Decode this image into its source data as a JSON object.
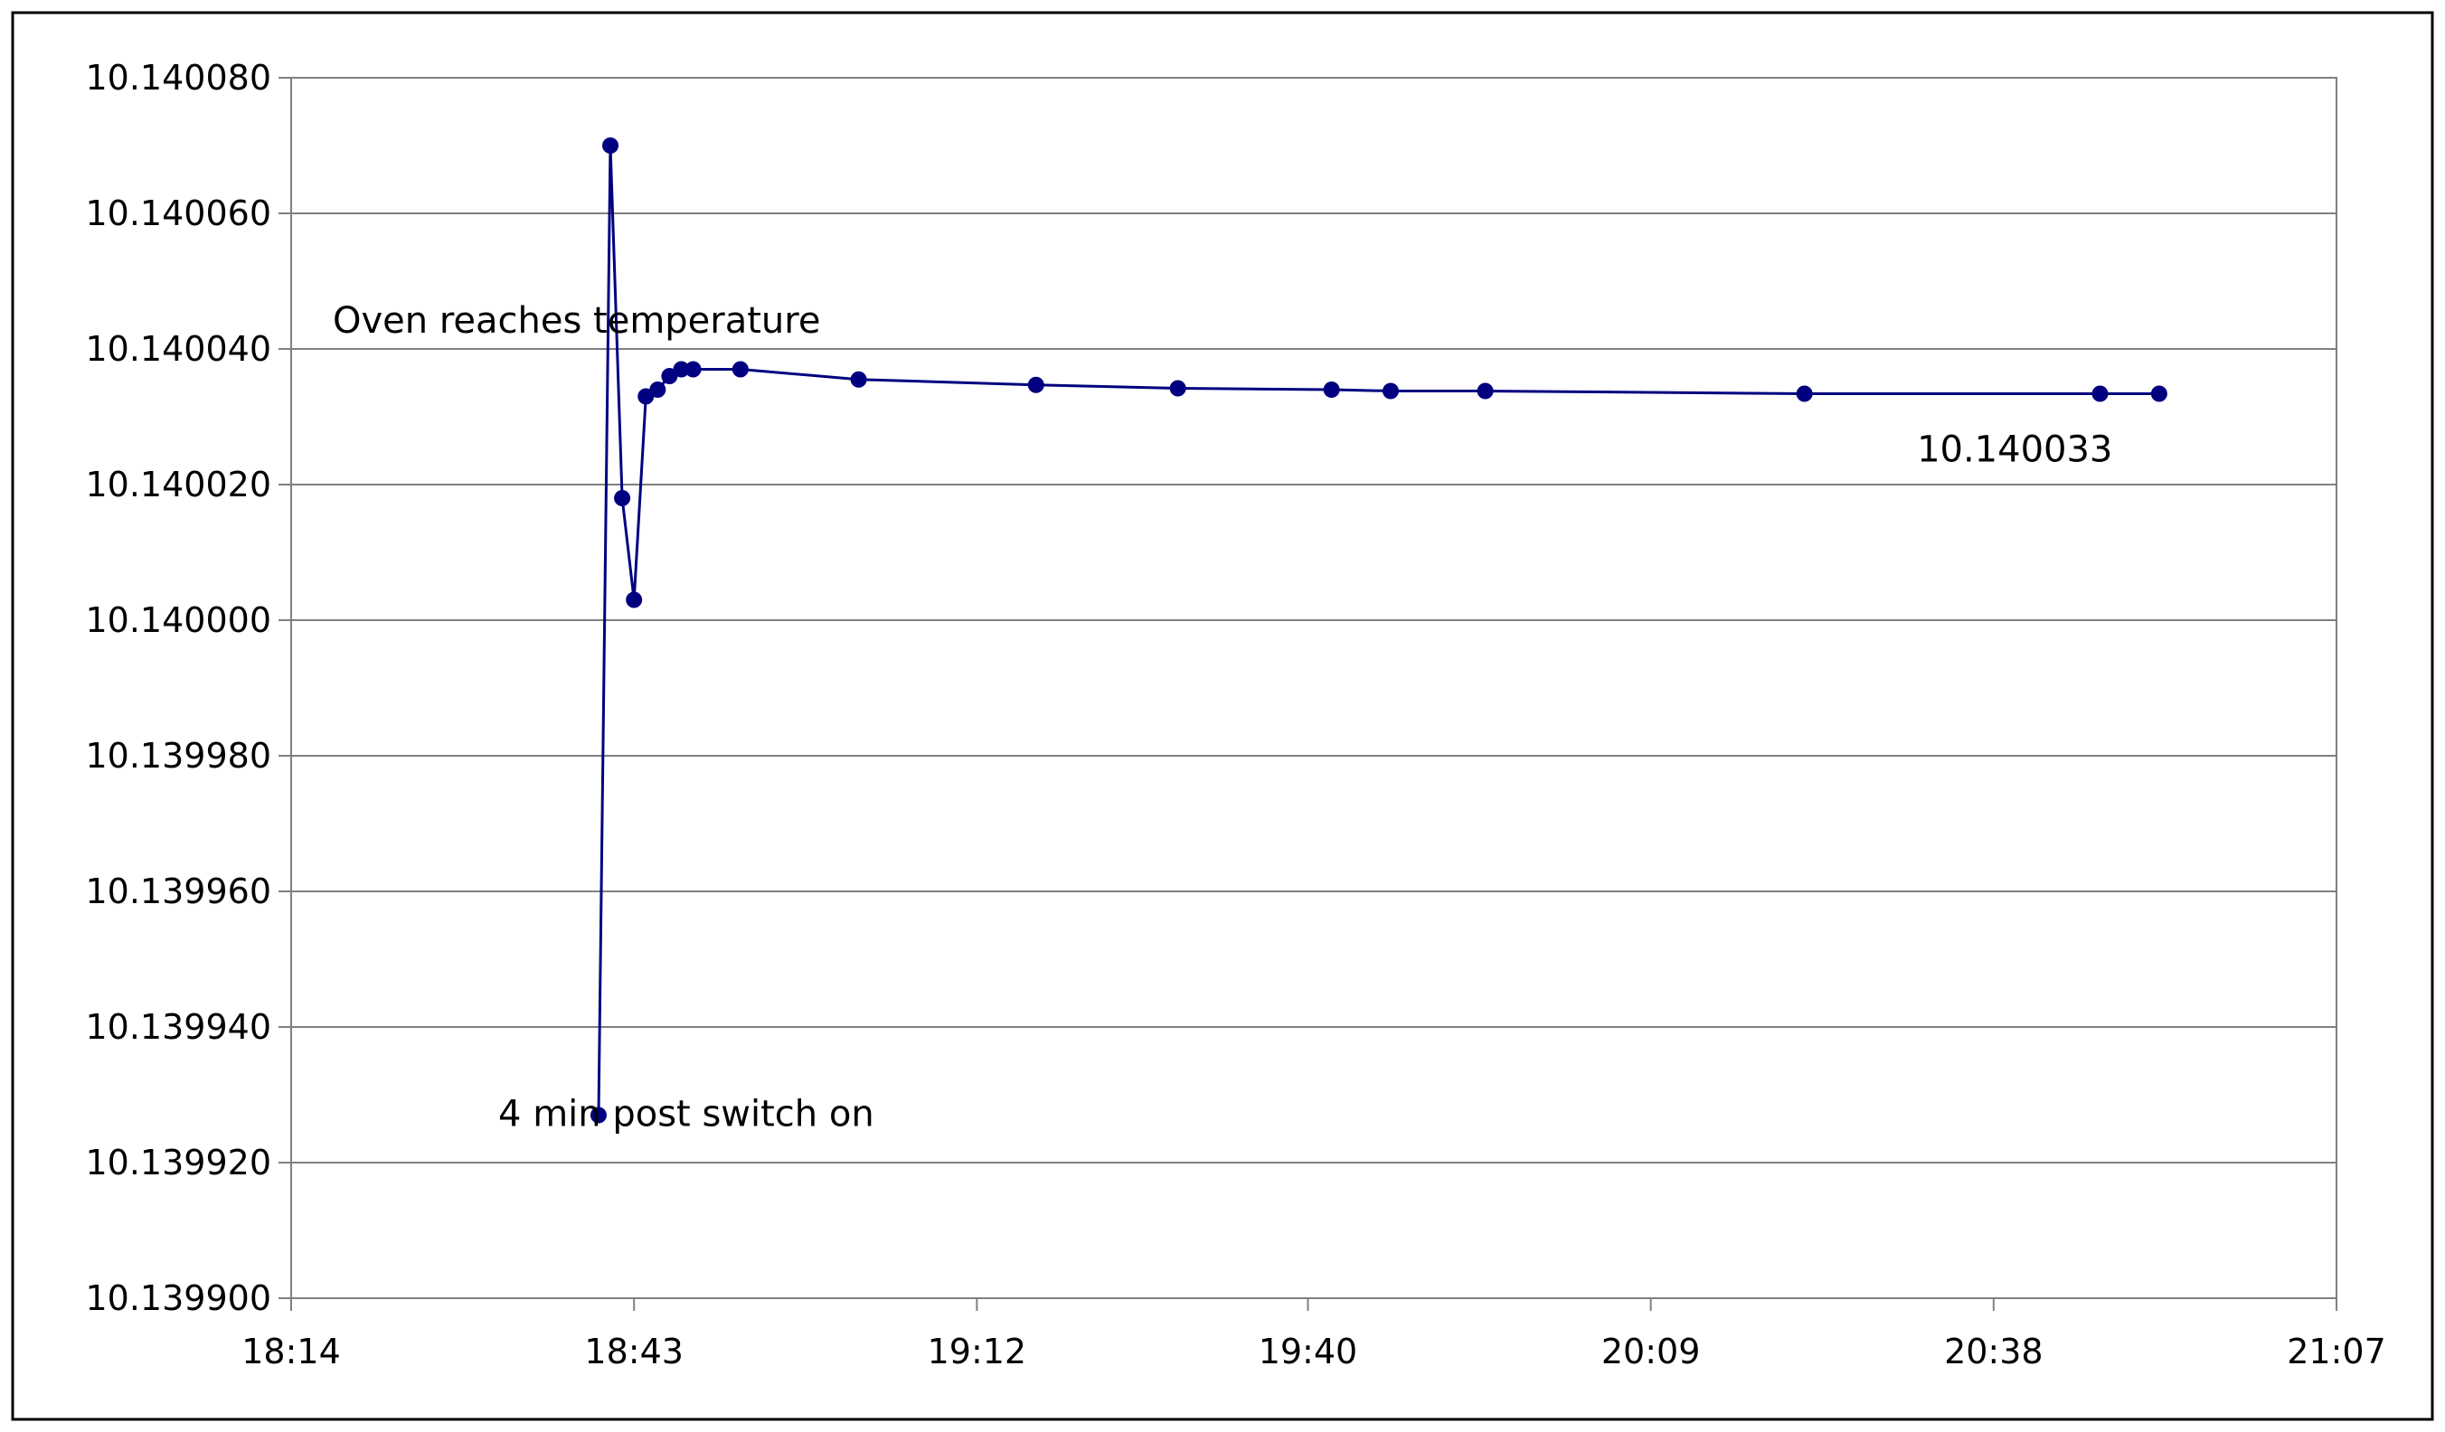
{
  "chart_data": {
    "type": "line",
    "title": "",
    "xlabel": "",
    "ylabel": "",
    "x_ticks": [
      "18:14",
      "18:43",
      "19:12",
      "19:40",
      "20:09",
      "20:38",
      "21:07"
    ],
    "y_ticks": [
      "10.139900",
      "10.139920",
      "10.139940",
      "10.139960",
      "10.139980",
      "10.140000",
      "10.140020",
      "10.140040",
      "10.140060",
      "10.140080"
    ],
    "xlim": [
      "18:14",
      "21:07"
    ],
    "ylim": [
      10.1399,
      10.14008
    ],
    "grid": "horizontal",
    "series": [
      {
        "color": "#000080",
        "x": [
          "18:40",
          "18:41",
          "18:42",
          "18:43",
          "18:44",
          "18:45",
          "18:46",
          "18:47",
          "18:48",
          "18:52",
          "19:02",
          "19:17",
          "19:29",
          "19:42",
          "19:47",
          "19:55",
          "20:22",
          "20:47",
          "20:52"
        ],
        "values": [
          10.139927,
          10.14007,
          10.140018,
          10.140003,
          10.140033,
          10.140034,
          10.140036,
          10.140037,
          10.140037,
          10.140037,
          10.1400355,
          10.1400347,
          10.1400342,
          10.140034,
          10.1400338,
          10.1400338,
          10.1400334,
          10.1400334,
          10.1400334
        ]
      }
    ],
    "annotations": [
      {
        "text": "Oven reaches temperature",
        "x": "18:14",
        "y": 10.140044
      },
      {
        "text": "10.140033",
        "x": "20:28",
        "y": 10.140025
      },
      {
        "text": "4 min post switch on",
        "x": "18:28",
        "y": 10.139927
      }
    ]
  }
}
